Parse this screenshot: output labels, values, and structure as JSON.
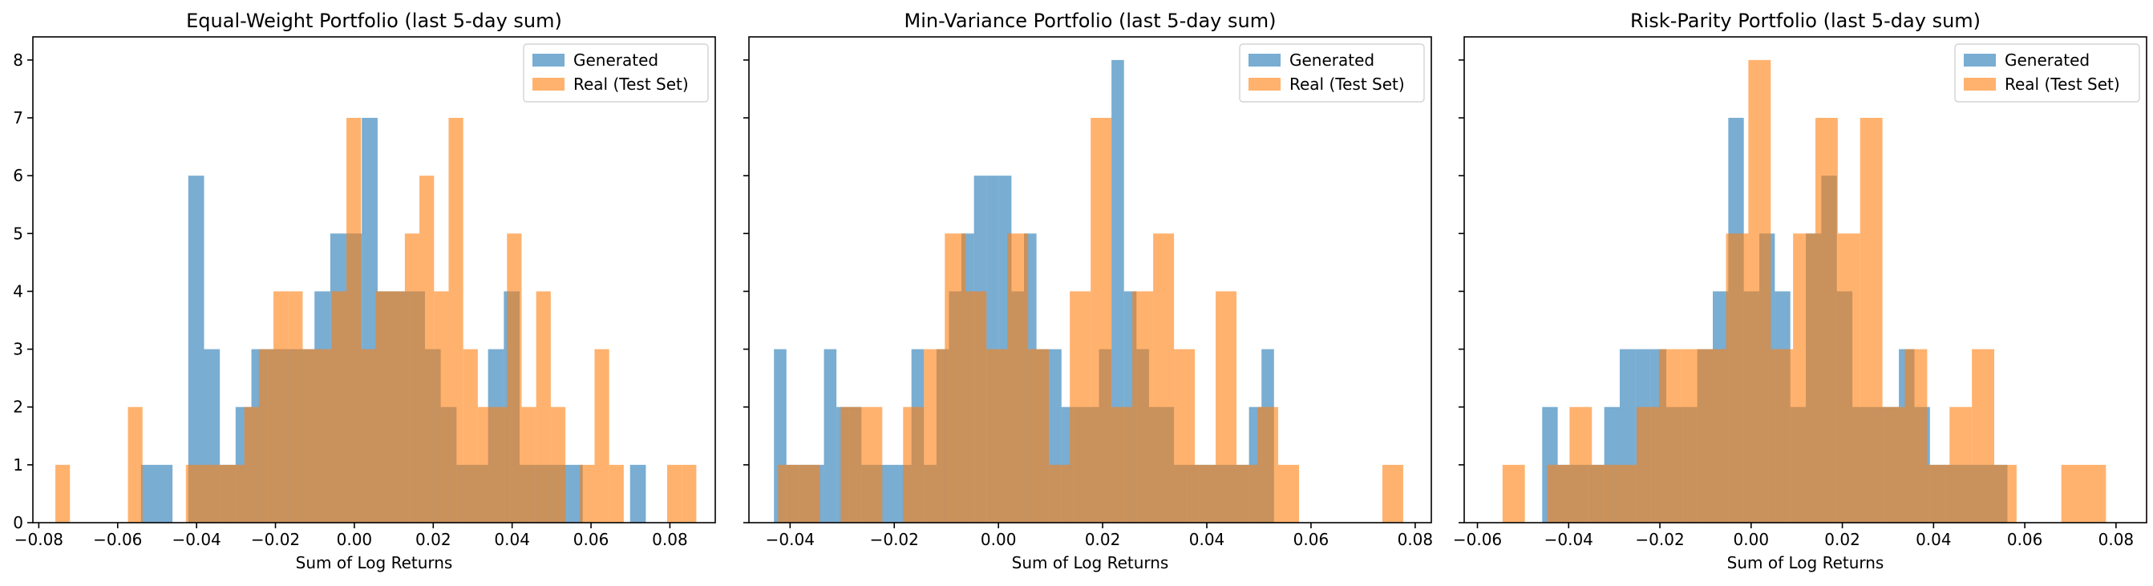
{
  "chart_data": [
    {
      "type": "histogram",
      "title": "Equal-Weight Portfolio (last 5-day sum)",
      "xlabel": "Sum of Log Returns",
      "ylabel": "",
      "xlim": [
        -0.0815,
        0.0915
      ],
      "ylim": [
        0,
        8.4
      ],
      "xticks": [
        -0.08,
        -0.06,
        -0.04,
        -0.02,
        0.0,
        0.02,
        0.04,
        0.06,
        0.08
      ],
      "xtick_labels": [
        "−0.08",
        "−0.06",
        "−0.04",
        "−0.02",
        "0.00",
        "0.02",
        "0.04",
        "0.06",
        "0.08"
      ],
      "yticks": [
        0,
        1,
        2,
        3,
        4,
        5,
        6,
        7,
        8
      ],
      "ytick_labels": [
        "0",
        "1",
        "2",
        "3",
        "4",
        "5",
        "6",
        "7",
        "8"
      ],
      "show_yticklabels": true,
      "legend": {
        "position": "top-right",
        "entries": [
          "Generated",
          "Real (Test Set)"
        ]
      },
      "series": [
        {
          "name": "Generated",
          "color": "#1f77b4",
          "alpha": 0.6,
          "bins": [
            [
              -0.0541,
              -0.0501,
              1
            ],
            [
              -0.0501,
              -0.0461,
              1
            ],
            [
              -0.0421,
              -0.0381,
              6
            ],
            [
              -0.0381,
              -0.0341,
              3
            ],
            [
              -0.0341,
              -0.0301,
              1
            ],
            [
              -0.0301,
              -0.0261,
              2
            ],
            [
              -0.0261,
              -0.0221,
              3
            ],
            [
              -0.0221,
              -0.0181,
              3
            ],
            [
              -0.0181,
              -0.0141,
              3
            ],
            [
              -0.0141,
              -0.0101,
              3
            ],
            [
              -0.0101,
              -0.0061,
              4
            ],
            [
              -0.0061,
              -0.0021,
              5
            ],
            [
              -0.0021,
              0.0019,
              5
            ],
            [
              0.0019,
              0.0059,
              7
            ],
            [
              0.0059,
              0.0099,
              4
            ],
            [
              0.0099,
              0.0139,
              4
            ],
            [
              0.0139,
              0.0179,
              4
            ],
            [
              0.0179,
              0.0219,
              3
            ],
            [
              0.0219,
              0.0259,
              2
            ],
            [
              0.0259,
              0.0299,
              1
            ],
            [
              0.0299,
              0.0339,
              1
            ],
            [
              0.0339,
              0.0379,
              3
            ],
            [
              0.0379,
              0.0419,
              4
            ],
            [
              0.0419,
              0.0459,
              1
            ],
            [
              0.0459,
              0.0499,
              1
            ],
            [
              0.0499,
              0.0539,
              1
            ],
            [
              0.0539,
              0.0579,
              1
            ],
            [
              0.0699,
              0.0739,
              1
            ]
          ]
        },
        {
          "name": "Real (Test Set)",
          "color": "#ff7f0e",
          "alpha": 0.6,
          "bins": [
            [
              -0.0758,
              -0.0721,
              1
            ],
            [
              -0.0574,
              -0.0537,
              2
            ],
            [
              -0.0427,
              -0.039,
              1
            ],
            [
              -0.039,
              -0.0353,
              1
            ],
            [
              -0.0353,
              -0.0316,
              1
            ],
            [
              -0.0316,
              -0.0279,
              1
            ],
            [
              -0.0279,
              -0.0242,
              2
            ],
            [
              -0.0242,
              -0.0205,
              3
            ],
            [
              -0.0205,
              -0.0168,
              4
            ],
            [
              -0.0168,
              -0.0131,
              4
            ],
            [
              -0.0131,
              -0.0094,
              3
            ],
            [
              -0.0094,
              -0.0057,
              3
            ],
            [
              -0.0057,
              -0.002,
              4
            ],
            [
              -0.002,
              0.0017,
              7
            ],
            [
              0.0017,
              0.0054,
              3
            ],
            [
              0.0054,
              0.0091,
              4
            ],
            [
              0.0091,
              0.0128,
              4
            ],
            [
              0.0128,
              0.0165,
              5
            ],
            [
              0.0165,
              0.0202,
              6
            ],
            [
              0.0202,
              0.0239,
              4
            ],
            [
              0.0239,
              0.0276,
              7
            ],
            [
              0.0276,
              0.0313,
              3
            ],
            [
              0.0313,
              0.035,
              2
            ],
            [
              0.035,
              0.0387,
              2
            ],
            [
              0.0387,
              0.0424,
              5
            ],
            [
              0.0424,
              0.0461,
              2
            ],
            [
              0.0461,
              0.0498,
              4
            ],
            [
              0.0498,
              0.0535,
              2
            ],
            [
              0.0572,
              0.0609,
              1
            ],
            [
              0.0609,
              0.0646,
              3
            ],
            [
              0.0646,
              0.0683,
              1
            ],
            [
              0.0793,
              0.083,
              1
            ],
            [
              0.083,
              0.0867,
              1
            ]
          ]
        }
      ]
    },
    {
      "type": "histogram",
      "title": "Min-Variance Portfolio (last 5-day sum)",
      "xlabel": "Sum of Log Returns",
      "ylabel": "",
      "xlim": [
        -0.0479,
        0.0831
      ],
      "ylim": [
        0,
        8.4
      ],
      "xticks": [
        -0.04,
        -0.02,
        0.0,
        0.02,
        0.04,
        0.06,
        0.08
      ],
      "xtick_labels": [
        "−0.04",
        "−0.02",
        "0.00",
        "0.02",
        "0.04",
        "0.06",
        "0.08"
      ],
      "yticks": [
        0,
        1,
        2,
        3,
        4,
        5,
        6,
        7,
        8
      ],
      "ytick_labels": [],
      "show_yticklabels": false,
      "legend": {
        "position": "top-right",
        "entries": [
          "Generated",
          "Real (Test Set)"
        ]
      },
      "series": [
        {
          "name": "Generated",
          "color": "#1f77b4",
          "alpha": 0.6,
          "bins": [
            [
              -0.0431,
              -0.0407,
              3
            ],
            [
              -0.0407,
              -0.0383,
              1
            ],
            [
              -0.0383,
              -0.0359,
              1
            ],
            [
              -0.0359,
              -0.0335,
              1
            ],
            [
              -0.0335,
              -0.0311,
              3
            ],
            [
              -0.0311,
              -0.0287,
              2
            ],
            [
              -0.0287,
              -0.0263,
              2
            ],
            [
              -0.0263,
              -0.0239,
              1
            ],
            [
              -0.0239,
              -0.0215,
              1
            ],
            [
              -0.0215,
              -0.0191,
              1
            ],
            [
              -0.0191,
              -0.0167,
              1
            ],
            [
              -0.0167,
              -0.0143,
              3
            ],
            [
              -0.0143,
              -0.0119,
              1
            ],
            [
              -0.0119,
              -0.0095,
              3
            ],
            [
              -0.0095,
              -0.0071,
              4
            ],
            [
              -0.0071,
              -0.0047,
              5
            ],
            [
              -0.0047,
              -0.0023,
              6
            ],
            [
              -0.0023,
              0.0001,
              6
            ],
            [
              0.0001,
              0.0025,
              6
            ],
            [
              0.0025,
              0.0049,
              4
            ],
            [
              0.0049,
              0.0073,
              5
            ],
            [
              0.0073,
              0.0097,
              3
            ],
            [
              0.0097,
              0.0121,
              3
            ],
            [
              0.0121,
              0.0145,
              2
            ],
            [
              0.0145,
              0.0169,
              2
            ],
            [
              0.0169,
              0.0193,
              2
            ],
            [
              0.0193,
              0.0217,
              3
            ],
            [
              0.0217,
              0.0241,
              8
            ],
            [
              0.0241,
              0.0265,
              4
            ],
            [
              0.0265,
              0.0289,
              3
            ],
            [
              0.0289,
              0.0313,
              2
            ],
            [
              0.0313,
              0.0337,
              2
            ],
            [
              0.0337,
              0.0361,
              1
            ],
            [
              0.0361,
              0.0385,
              1
            ],
            [
              0.0385,
              0.0409,
              1
            ],
            [
              0.0409,
              0.0433,
              1
            ],
            [
              0.0433,
              0.0457,
              1
            ],
            [
              0.0457,
              0.0481,
              1
            ],
            [
              0.0481,
              0.0505,
              2
            ],
            [
              0.0505,
              0.0529,
              3
            ]
          ]
        },
        {
          "name": "Real (Test Set)",
          "color": "#ff7f0e",
          "alpha": 0.6,
          "bins": [
            [
              -0.0423,
              -0.0383,
              1
            ],
            [
              -0.0383,
              -0.0343,
              1
            ],
            [
              -0.0303,
              -0.0263,
              2
            ],
            [
              -0.0263,
              -0.0223,
              2
            ],
            [
              -0.0183,
              -0.0143,
              2
            ],
            [
              -0.0143,
              -0.0103,
              3
            ],
            [
              -0.0103,
              -0.0063,
              5
            ],
            [
              -0.0063,
              -0.0023,
              4
            ],
            [
              -0.0023,
              0.0017,
              3
            ],
            [
              0.0017,
              0.0057,
              5
            ],
            [
              0.0057,
              0.0097,
              3
            ],
            [
              0.0097,
              0.0137,
              1
            ],
            [
              0.0137,
              0.0177,
              4
            ],
            [
              0.0177,
              0.0217,
              7
            ],
            [
              0.0217,
              0.0257,
              2
            ],
            [
              0.0257,
              0.0297,
              4
            ],
            [
              0.0297,
              0.0337,
              5
            ],
            [
              0.0337,
              0.0377,
              3
            ],
            [
              0.0377,
              0.0417,
              1
            ],
            [
              0.0417,
              0.0457,
              4
            ],
            [
              0.0457,
              0.0497,
              1
            ],
            [
              0.0497,
              0.0537,
              2
            ],
            [
              0.0537,
              0.0577,
              1
            ],
            [
              0.0737,
              0.0777,
              1
            ]
          ]
        }
      ]
    },
    {
      "type": "histogram",
      "title": "Risk-Parity Portfolio (last 5-day sum)",
      "xlabel": "Sum of Log Returns",
      "ylabel": "",
      "xlim": [
        -0.0629,
        0.0867
      ],
      "ylim": [
        0,
        8.4
      ],
      "xticks": [
        -0.06,
        -0.04,
        -0.02,
        0.0,
        0.02,
        0.04,
        0.06,
        0.08
      ],
      "xtick_labels": [
        "−0.06",
        "−0.04",
        "−0.02",
        "0.00",
        "0.02",
        "0.04",
        "0.06",
        "0.08"
      ],
      "yticks": [
        0,
        1,
        2,
        3,
        4,
        5,
        6,
        7,
        8
      ],
      "ytick_labels": [],
      "show_yticklabels": false,
      "legend": {
        "position": "top-right",
        "entries": [
          "Generated",
          "Real (Test Set)"
        ]
      },
      "series": [
        {
          "name": "Generated",
          "color": "#1f77b4",
          "alpha": 0.6,
          "bins": [
            [
              -0.0458,
              -0.0424,
              2
            ],
            [
              -0.0424,
              -0.039,
              1
            ],
            [
              -0.039,
              -0.0356,
              1
            ],
            [
              -0.0356,
              -0.0322,
              1
            ],
            [
              -0.0322,
              -0.0288,
              2
            ],
            [
              -0.0288,
              -0.0254,
              3
            ],
            [
              -0.0254,
              -0.022,
              3
            ],
            [
              -0.022,
              -0.0186,
              3
            ],
            [
              -0.0186,
              -0.0152,
              2
            ],
            [
              -0.0152,
              -0.0118,
              2
            ],
            [
              -0.0118,
              -0.0084,
              3
            ],
            [
              -0.0084,
              -0.005,
              4
            ],
            [
              -0.005,
              -0.0016,
              7
            ],
            [
              -0.0016,
              0.0018,
              4
            ],
            [
              0.0018,
              0.0052,
              5
            ],
            [
              0.0052,
              0.0086,
              4
            ],
            [
              0.0086,
              0.012,
              2
            ],
            [
              0.012,
              0.0154,
              5
            ],
            [
              0.0154,
              0.0188,
              6
            ],
            [
              0.0188,
              0.0222,
              4
            ],
            [
              0.0222,
              0.0256,
              2
            ],
            [
              0.0256,
              0.029,
              2
            ],
            [
              0.029,
              0.0324,
              2
            ],
            [
              0.0324,
              0.0358,
              3
            ],
            [
              0.0358,
              0.0392,
              2
            ],
            [
              0.0392,
              0.0426,
              1
            ],
            [
              0.0426,
              0.046,
              1
            ],
            [
              0.046,
              0.0494,
              1
            ],
            [
              0.0494,
              0.0528,
              1
            ],
            [
              0.0528,
              0.0562,
              1
            ]
          ]
        },
        {
          "name": "Real (Test Set)",
          "color": "#ff7f0e",
          "alpha": 0.6,
          "bins": [
            [
              -0.0545,
              -0.0496,
              1
            ],
            [
              -0.0447,
              -0.0398,
              1
            ],
            [
              -0.0398,
              -0.0349,
              2
            ],
            [
              -0.0349,
              -0.03,
              1
            ],
            [
              -0.03,
              -0.0251,
              1
            ],
            [
              -0.0251,
              -0.0202,
              2
            ],
            [
              -0.0202,
              -0.0153,
              3
            ],
            [
              -0.0153,
              -0.0104,
              3
            ],
            [
              -0.0104,
              -0.0055,
              3
            ],
            [
              -0.0055,
              -0.0006,
              5
            ],
            [
              -0.0006,
              0.0043,
              8
            ],
            [
              0.0043,
              0.0092,
              3
            ],
            [
              0.0092,
              0.0141,
              5
            ],
            [
              0.0141,
              0.019,
              7
            ],
            [
              0.019,
              0.0239,
              5
            ],
            [
              0.0239,
              0.0288,
              7
            ],
            [
              0.0288,
              0.0337,
              2
            ],
            [
              0.0337,
              0.0386,
              3
            ],
            [
              0.0386,
              0.0435,
              1
            ],
            [
              0.0435,
              0.0484,
              2
            ],
            [
              0.0484,
              0.0533,
              3
            ],
            [
              0.0533,
              0.0582,
              1
            ],
            [
              0.068,
              0.0729,
              1
            ],
            [
              0.0729,
              0.0778,
              1
            ]
          ]
        }
      ]
    }
  ]
}
